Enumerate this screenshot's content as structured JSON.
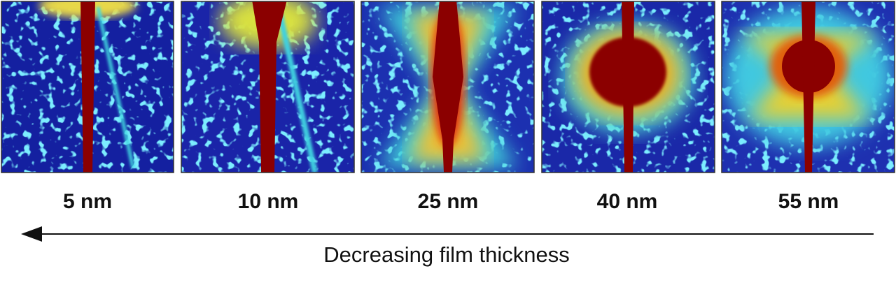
{
  "panels": [
    {
      "label": "5 nm"
    },
    {
      "label": "10 nm"
    },
    {
      "label": "25 nm"
    },
    {
      "label": "40 nm"
    },
    {
      "label": "55 nm"
    }
  ],
  "arrow_caption": "Decreasing film thickness"
}
